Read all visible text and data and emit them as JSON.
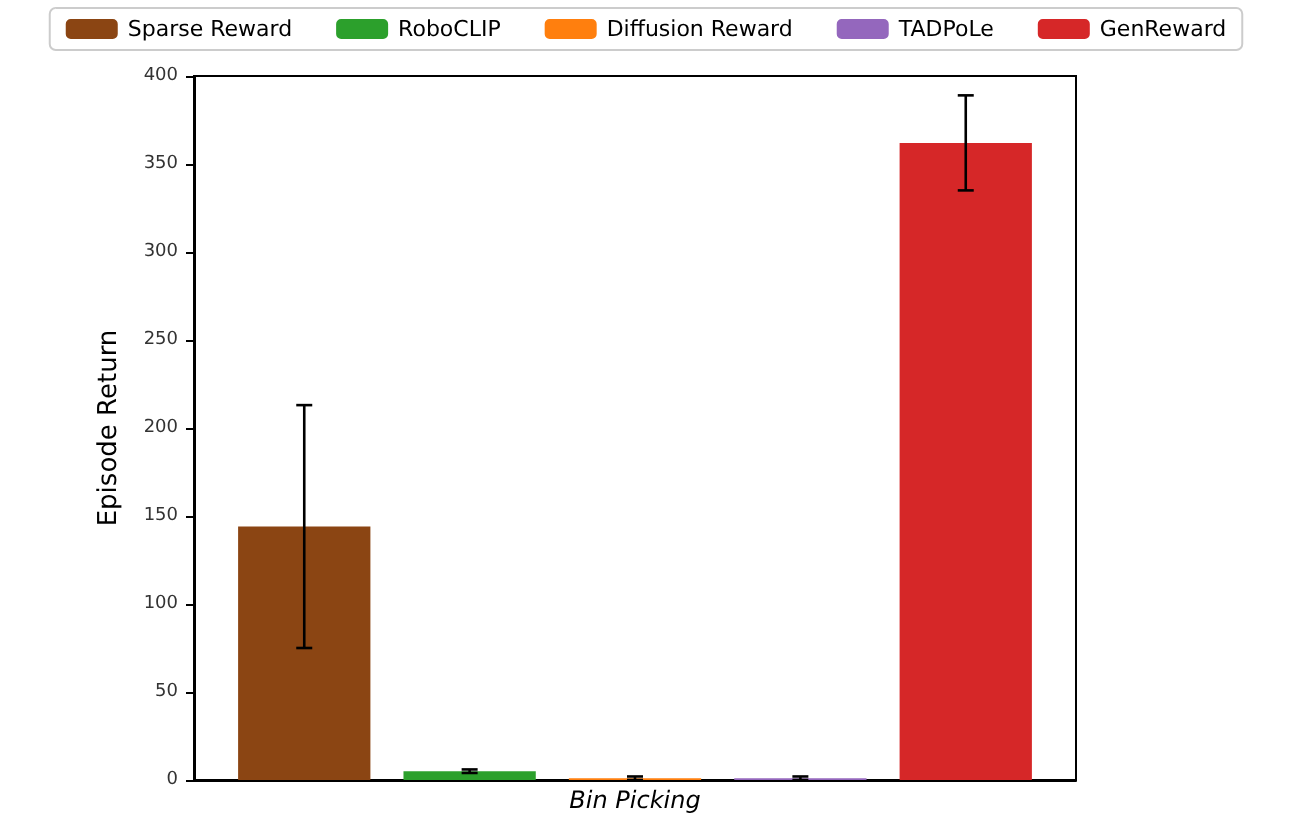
{
  "chart_data": {
    "type": "bar",
    "ylabel": "Episode Return",
    "categories": [
      "Bin Picking"
    ],
    "series": [
      {
        "name": "Sparse Reward",
        "color": "#8b4513",
        "values": [
          144
        ],
        "errors": [
          69
        ]
      },
      {
        "name": "RoboCLIP",
        "color": "#2ca02c",
        "values": [
          5
        ],
        "errors": [
          1
        ]
      },
      {
        "name": "Diffusion Reward",
        "color": "#ff7f0e",
        "values": [
          1
        ],
        "errors": [
          1
        ]
      },
      {
        "name": "TADPoLe",
        "color": "#9467bd",
        "values": [
          1
        ],
        "errors": [
          1
        ]
      },
      {
        "name": "GenReward",
        "color": "#d62728",
        "values": [
          362
        ],
        "errors": [
          27
        ]
      }
    ],
    "ylim": [
      0,
      400
    ],
    "yticks": [
      0,
      50,
      100,
      150,
      200,
      250,
      300,
      350,
      400
    ],
    "grid": false,
    "legend": "top"
  }
}
